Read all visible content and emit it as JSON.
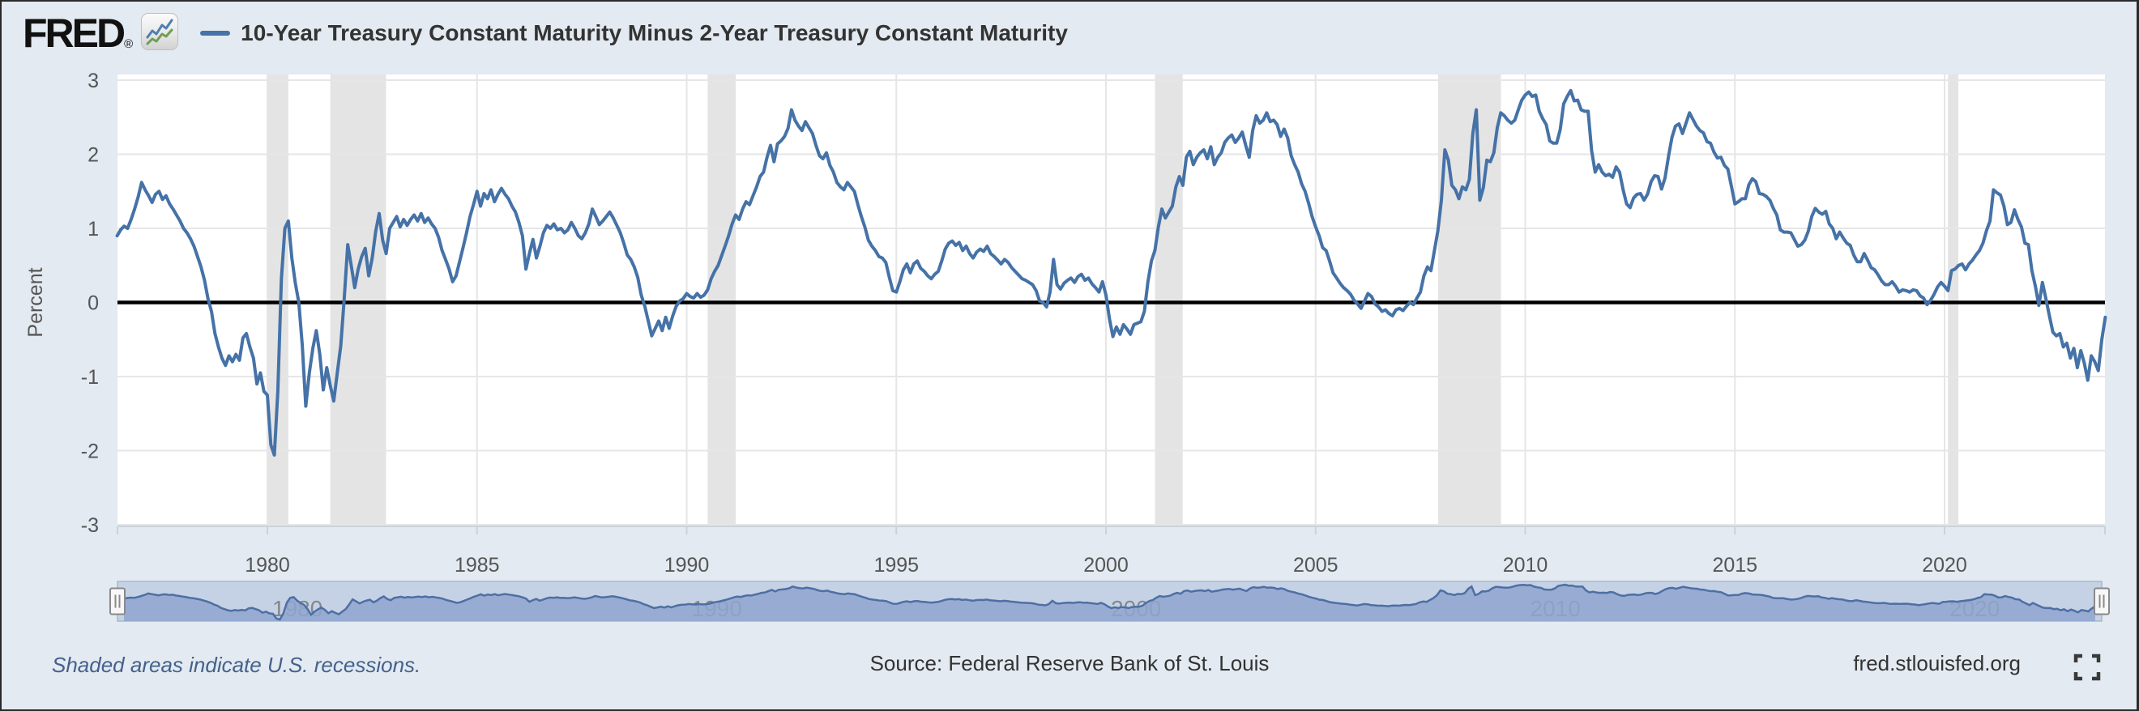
{
  "header": {
    "logo_text": "FRED",
    "logo_reg": "®",
    "logo_icon": "fred-zigzag-chart-icon",
    "legend_icon": "blue-line-dash"
  },
  "footer": {
    "recessions_note": "Shaded areas indicate U.S. recessions.",
    "source": "Source: Federal Reserve Bank of St. Louis",
    "site": "fred.stlouisfed.org",
    "fullscreen_icon": "expand-fullscreen-icon"
  },
  "colors": {
    "background": "#e3eaf1",
    "plot_background": "#ffffff",
    "line": "#4572a7",
    "zero_line": "#000000",
    "gridline": "#e6e6e6",
    "recession_band": "#e4e4e4",
    "axis_text": "#555555",
    "axis_line": "#c9d3de",
    "navigator_track": "#c5d2e6",
    "navigator_fill": "#8fa6cf",
    "navigator_stroke": "#4e6fa3",
    "navigator_label": "#7a7a7a"
  },
  "navigator": {
    "year_labels": [
      "1980",
      "1990",
      "2000",
      "2010",
      "2020"
    ],
    "left_handle": "drag-handle",
    "right_handle": "drag-handle"
  },
  "chart_data": {
    "type": "line",
    "title": "10-Year Treasury Constant Maturity Minus 2-Year Treasury Constant Maturity",
    "xlabel": "",
    "ylabel": "Percent",
    "x_unit": "year",
    "x_start": 1976.4167,
    "x_step": 0.0833333,
    "x_ticks": [
      1980,
      1985,
      1990,
      1995,
      2000,
      2005,
      2010,
      2015,
      2020
    ],
    "y_ticks": [
      3,
      2,
      1,
      0,
      -1,
      -2,
      -3
    ],
    "ylim": [
      -3.1,
      3.1
    ],
    "grid": true,
    "zero_baseline": true,
    "legend_position": "top",
    "recession_shading": [
      [
        1980.0,
        1980.5
      ],
      [
        1981.5,
        1982.83
      ],
      [
        1990.5,
        1991.17
      ],
      [
        2001.17,
        2001.83
      ],
      [
        2007.92,
        2009.42
      ],
      [
        2020.08,
        2020.33
      ]
    ],
    "series": [
      {
        "name": "10-Year Treasury Constant Maturity Minus 2-Year Treasury Constant Maturity",
        "frequency": "monthly",
        "values": [
          0.9,
          0.98,
          1.03,
          1.0,
          1.12,
          1.26,
          1.42,
          1.62,
          1.52,
          1.44,
          1.35,
          1.46,
          1.5,
          1.39,
          1.44,
          1.33,
          1.26,
          1.18,
          1.1,
          1.0,
          0.94,
          0.86,
          0.76,
          0.62,
          0.48,
          0.3,
          0.05,
          -0.12,
          -0.42,
          -0.6,
          -0.75,
          -0.85,
          -0.72,
          -0.8,
          -0.7,
          -0.78,
          -0.48,
          -0.42,
          -0.6,
          -0.75,
          -1.1,
          -0.95,
          -1.2,
          -1.25,
          -1.92,
          -2.06,
          -1.2,
          0.32,
          1.0,
          1.1,
          0.6,
          0.26,
          0.0,
          -0.58,
          -1.4,
          -0.95,
          -0.62,
          -0.38,
          -0.7,
          -1.18,
          -0.88,
          -1.12,
          -1.33,
          -0.95,
          -0.58,
          0.06,
          0.78,
          0.5,
          0.2,
          0.45,
          0.62,
          0.73,
          0.36,
          0.6,
          0.96,
          1.2,
          0.84,
          0.66,
          1.0,
          1.08,
          1.16,
          1.02,
          1.12,
          1.04,
          1.12,
          1.18,
          1.1,
          1.2,
          1.08,
          1.14,
          1.06,
          1.0,
          0.88,
          0.7,
          0.58,
          0.45,
          0.28,
          0.36,
          0.55,
          0.74,
          0.94,
          1.16,
          1.32,
          1.5,
          1.3,
          1.47,
          1.4,
          1.52,
          1.36,
          1.46,
          1.54,
          1.46,
          1.4,
          1.3,
          1.22,
          1.08,
          0.9,
          0.45,
          0.66,
          0.85,
          0.6,
          0.76,
          0.94,
          1.04,
          1.0,
          1.06,
          0.98,
          1.0,
          0.94,
          0.98,
          1.08,
          1.0,
          0.9,
          0.86,
          0.94,
          1.06,
          1.26,
          1.16,
          1.05,
          1.1,
          1.16,
          1.22,
          1.14,
          1.04,
          0.94,
          0.8,
          0.64,
          0.58,
          0.48,
          0.34,
          0.1,
          -0.05,
          -0.25,
          -0.45,
          -0.35,
          -0.25,
          -0.38,
          -0.2,
          -0.35,
          -0.18,
          -0.05,
          0.02,
          0.05,
          0.12,
          0.08,
          0.06,
          0.12,
          0.07,
          0.1,
          0.17,
          0.32,
          0.42,
          0.5,
          0.63,
          0.76,
          0.9,
          1.06,
          1.18,
          1.12,
          1.26,
          1.36,
          1.32,
          1.44,
          1.56,
          1.7,
          1.76,
          1.96,
          2.12,
          1.9,
          2.14,
          2.18,
          2.24,
          2.35,
          2.6,
          2.46,
          2.38,
          2.32,
          2.44,
          2.36,
          2.28,
          2.12,
          1.98,
          1.94,
          2.02,
          1.85,
          1.76,
          1.62,
          1.56,
          1.52,
          1.62,
          1.56,
          1.5,
          1.32,
          1.16,
          1.02,
          0.84,
          0.76,
          0.7,
          0.62,
          0.6,
          0.54,
          0.34,
          0.16,
          0.14,
          0.28,
          0.44,
          0.52,
          0.4,
          0.52,
          0.56,
          0.46,
          0.42,
          0.36,
          0.32,
          0.38,
          0.42,
          0.56,
          0.72,
          0.8,
          0.83,
          0.77,
          0.81,
          0.7,
          0.76,
          0.66,
          0.6,
          0.68,
          0.72,
          0.69,
          0.76,
          0.66,
          0.62,
          0.57,
          0.52,
          0.58,
          0.54,
          0.47,
          0.42,
          0.37,
          0.32,
          0.3,
          0.27,
          0.24,
          0.16,
          0.02,
          0.0,
          -0.06,
          0.14,
          0.58,
          0.24,
          0.18,
          0.26,
          0.3,
          0.33,
          0.27,
          0.35,
          0.38,
          0.3,
          0.33,
          0.25,
          0.2,
          0.14,
          0.28,
          0.1,
          -0.22,
          -0.46,
          -0.33,
          -0.43,
          -0.3,
          -0.36,
          -0.43,
          -0.3,
          -0.28,
          -0.26,
          -0.12,
          0.28,
          0.56,
          0.7,
          1.02,
          1.26,
          1.14,
          1.22,
          1.3,
          1.56,
          1.7,
          1.58,
          1.96,
          2.04,
          1.86,
          1.96,
          2.02,
          2.06,
          1.94,
          2.1,
          1.86,
          1.96,
          2.02,
          2.16,
          2.22,
          2.26,
          2.16,
          2.22,
          2.3,
          2.12,
          1.96,
          2.32,
          2.52,
          2.42,
          2.46,
          2.56,
          2.44,
          2.46,
          2.4,
          2.24,
          2.34,
          2.22,
          1.98,
          1.86,
          1.76,
          1.6,
          1.5,
          1.34,
          1.16,
          1.02,
          0.9,
          0.74,
          0.7,
          0.56,
          0.4,
          0.33,
          0.26,
          0.2,
          0.16,
          0.11,
          0.03,
          -0.02,
          -0.08,
          0.02,
          0.12,
          0.08,
          -0.02,
          -0.06,
          -0.12,
          -0.1,
          -0.15,
          -0.18,
          -0.1,
          -0.08,
          -0.11,
          -0.05,
          0.0,
          -0.03,
          0.06,
          0.14,
          0.36,
          0.48,
          0.43,
          0.7,
          0.97,
          1.38,
          2.06,
          1.92,
          1.58,
          1.52,
          1.4,
          1.56,
          1.52,
          1.66,
          2.28,
          2.6,
          1.38,
          1.55,
          1.92,
          1.9,
          2.02,
          2.36,
          2.56,
          2.52,
          2.46,
          2.42,
          2.46,
          2.6,
          2.73,
          2.8,
          2.84,
          2.78,
          2.8,
          2.58,
          2.48,
          2.4,
          2.18,
          2.15,
          2.15,
          2.33,
          2.68,
          2.78,
          2.86,
          2.72,
          2.73,
          2.6,
          2.58,
          2.58,
          2.05,
          1.76,
          1.86,
          1.76,
          1.71,
          1.73,
          1.69,
          1.83,
          1.76,
          1.52,
          1.33,
          1.28,
          1.41,
          1.46,
          1.47,
          1.38,
          1.46,
          1.63,
          1.71,
          1.7,
          1.53,
          1.68,
          1.97,
          2.23,
          2.38,
          2.41,
          2.28,
          2.42,
          2.56,
          2.47,
          2.38,
          2.32,
          2.29,
          2.17,
          2.15,
          2.03,
          1.95,
          1.96,
          1.85,
          1.8,
          1.57,
          1.33,
          1.36,
          1.4,
          1.4,
          1.59,
          1.67,
          1.63,
          1.47,
          1.46,
          1.43,
          1.38,
          1.27,
          1.18,
          0.98,
          0.95,
          0.95,
          0.94,
          0.85,
          0.76,
          0.78,
          0.84,
          0.96,
          1.16,
          1.27,
          1.22,
          1.19,
          1.23,
          1.06,
          1.0,
          0.86,
          0.95,
          0.87,
          0.8,
          0.77,
          0.64,
          0.55,
          0.55,
          0.66,
          0.57,
          0.47,
          0.44,
          0.37,
          0.29,
          0.24,
          0.24,
          0.28,
          0.22,
          0.14,
          0.17,
          0.16,
          0.14,
          0.17,
          0.16,
          0.09,
          0.06,
          -0.03,
          0.03,
          0.11,
          0.21,
          0.27,
          0.22,
          0.16,
          0.43,
          0.45,
          0.5,
          0.52,
          0.44,
          0.52,
          0.57,
          0.64,
          0.7,
          0.8,
          0.97,
          1.1,
          1.52,
          1.48,
          1.45,
          1.3,
          1.05,
          1.08,
          1.25,
          1.12,
          1.02,
          0.8,
          0.78,
          0.43,
          0.22,
          -0.04,
          0.27,
          0.05,
          -0.18,
          -0.4,
          -0.45,
          -0.42,
          -0.6,
          -0.55,
          -0.75,
          -0.62,
          -0.88,
          -0.65,
          -0.82,
          -1.05,
          -0.72,
          -0.8,
          -0.92,
          -0.5,
          -0.2
        ]
      }
    ]
  }
}
